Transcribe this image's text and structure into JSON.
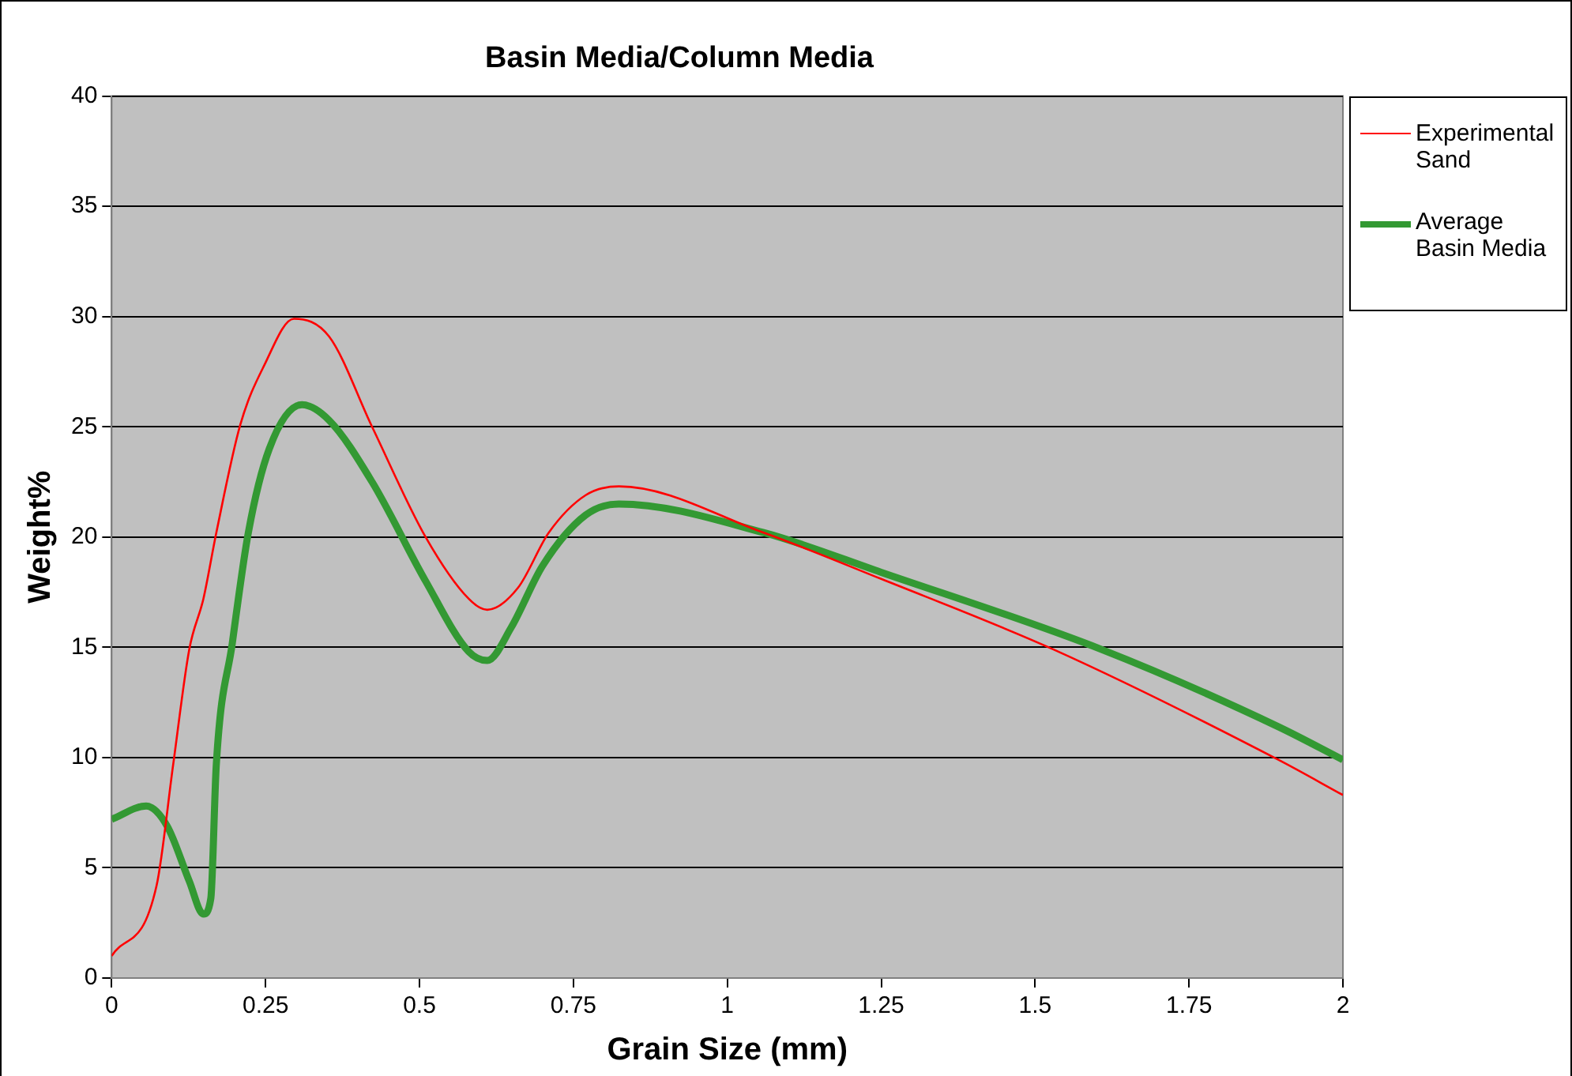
{
  "chart_data": {
    "type": "line",
    "title": "Basin Media/Column Media",
    "xlabel": "Grain Size (mm)",
    "ylabel": "Weight%",
    "xlim": [
      0,
      2
    ],
    "xticks": [
      0,
      0.25,
      0.5,
      0.75,
      1,
      1.25,
      1.5,
      1.75,
      2
    ],
    "ylim": [
      0,
      40
    ],
    "yticks": [
      0,
      5,
      10,
      15,
      20,
      25,
      30,
      35,
      40
    ],
    "grid": "y",
    "legend": "right",
    "marker": "none",
    "line_style": "solid",
    "series": [
      {
        "name": "Experimental Sand",
        "color": "#ff0000",
        "x": [
          0,
          0.073,
          0.1,
          0.126,
          0.149,
          0.17,
          0.209,
          0.248,
          0.296,
          0.353,
          0.423,
          0.51,
          0.58,
          0.61,
          0.66,
          0.71,
          0.77,
          0.824,
          1.059,
          1.25,
          1.53,
          1.895,
          2
        ],
        "values": [
          1.0,
          4.2,
          9.7,
          14.9,
          17.2,
          20.2,
          25.1,
          27.8,
          29.9,
          29.1,
          25.0,
          20.0,
          17.2,
          16.7,
          17.7,
          20.2,
          21.9,
          22.3,
          20.2,
          18.1,
          14.9,
          9.9,
          8.3
        ]
      },
      {
        "name": "Average Basin Media",
        "color": "#339933",
        "x": [
          0,
          0.056,
          0.09,
          0.126,
          0.149,
          0.161,
          0.17,
          0.196,
          0.222,
          0.256,
          0.309,
          0.353,
          0.423,
          0.51,
          0.58,
          0.61,
          0.649,
          0.7,
          0.77,
          0.824,
          1.059,
          1.25,
          1.608,
          1.895,
          2
        ],
        "values": [
          7.2,
          7.8,
          6.9,
          4.4,
          2.9,
          3.6,
          9.7,
          15.2,
          20.2,
          24.0,
          26.0,
          25.3,
          22.5,
          18.0,
          14.8,
          14.4,
          15.9,
          18.7,
          21.0,
          21.5,
          20.2,
          18.4,
          14.9,
          11.4,
          9.9
        ]
      }
    ]
  }
}
